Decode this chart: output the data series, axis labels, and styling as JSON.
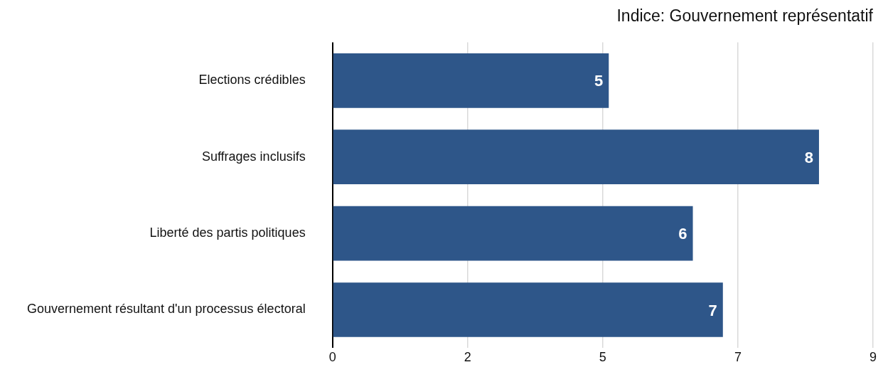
{
  "chart_data": {
    "type": "bar",
    "orientation": "horizontal",
    "title": "Indice: Gouvernement représentatif",
    "categories": [
      "Elections crédibles",
      "Suffrages inclusifs",
      "Liberté des partis politiques",
      "Gouvernement résultant d'un processus électoral"
    ],
    "values": [
      4.6,
      8.1,
      6.0,
      6.5
    ],
    "value_labels": [
      "5",
      "8",
      "6",
      "7"
    ],
    "color": "#2e5689",
    "xlim": [
      0,
      9
    ],
    "xticks": [
      0,
      {
        "value": 2.25,
        "label": "2"
      },
      {
        "value": 4.5,
        "label": "5"
      },
      {
        "value": 6.75,
        "label": "7"
      },
      9
    ],
    "grid": "x",
    "legend": false
  }
}
